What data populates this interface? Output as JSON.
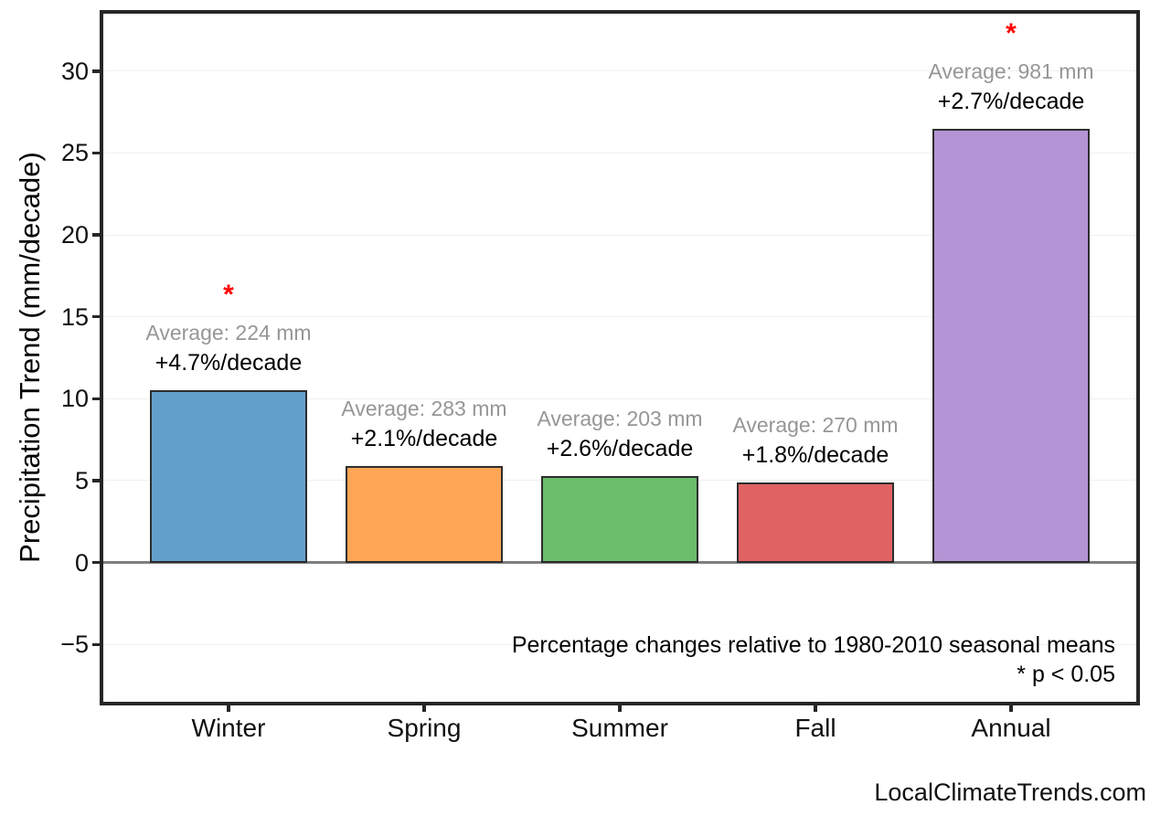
{
  "watermark": "LocalClimateTrends.com",
  "chart_data": {
    "type": "bar",
    "title": "",
    "ylabel": "Precipitation Trend (mm/decade)",
    "xlabel": "",
    "categories": [
      "Winter",
      "Spring",
      "Summer",
      "Fall",
      "Annual"
    ],
    "values": [
      10.5,
      5.9,
      5.3,
      4.9,
      26.5
    ],
    "bar_colors": [
      "#62a0cb",
      "#ffa556",
      "#6bbc6b",
      "#e16263",
      "#b494d4"
    ],
    "bar_edge_color": "#2d2d2d",
    "annotations": [
      {
        "average": "Average: 224 mm",
        "trend": "+4.7%/decade",
        "significant": true
      },
      {
        "average": "Average: 283 mm",
        "trend": "+2.1%/decade",
        "significant": false
      },
      {
        "average": "Average: 203 mm",
        "trend": "+2.6%/decade",
        "significant": false
      },
      {
        "average": "Average: 270 mm",
        "trend": "+1.8%/decade",
        "significant": false
      },
      {
        "average": "Average: 981 mm",
        "trend": "+2.7%/decade",
        "significant": true
      }
    ],
    "significance_marker": "*",
    "significance_color": "#ff0000",
    "avg_label_color": "#969696",
    "yticks": [
      -5,
      0,
      5,
      10,
      15,
      20,
      25,
      30
    ],
    "ytick_labels": [
      "−5",
      "0",
      "5",
      "10",
      "15",
      "20",
      "25",
      "30"
    ],
    "ylim": [
      -8.5,
      33.5
    ],
    "grid": true,
    "legend": "none",
    "zero_line_color": "#7f7f7f",
    "notes": [
      "Percentage changes relative to 1980-2010 seasonal means",
      "* p < 0.05"
    ]
  }
}
